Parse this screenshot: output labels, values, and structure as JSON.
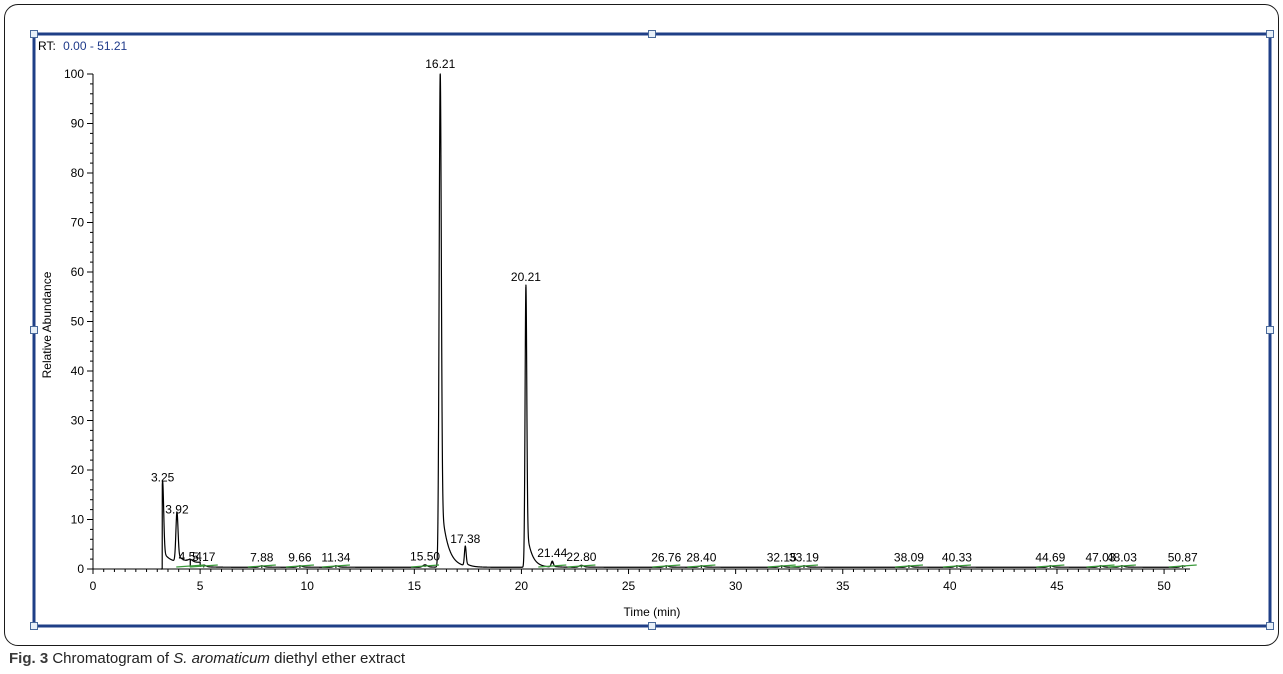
{
  "rt_range": {
    "label": "RT:",
    "value": "0.00 - 51.21"
  },
  "caption": {
    "label": "Fig. 3",
    "text_before": "Chromatogram of ",
    "species": "S. aromaticum",
    "text_after": " diethyl ether extract"
  },
  "colors": {
    "frame": "#1f3f87",
    "trace": "#000000",
    "baseline_marks": "#3a9a3a",
    "rt_value": "#1e3a8a",
    "handle_fill": "#e8f0f8",
    "handle_stroke": "#4a6a9a"
  },
  "chart_data": {
    "type": "line",
    "xlabel": "Time (min)",
    "ylabel": "Relative Abundance",
    "xlim": [
      0,
      51.21
    ],
    "ylim": [
      0,
      100
    ],
    "x_ticks": [
      0,
      5,
      10,
      15,
      20,
      25,
      30,
      35,
      40,
      45,
      50
    ],
    "y_ticks": [
      0,
      10,
      20,
      30,
      40,
      50,
      60,
      70,
      80,
      90,
      100
    ],
    "grid": false,
    "peaks": [
      {
        "rt": 3.25,
        "label": "3.25",
        "height": 16.5,
        "width": 0.05
      },
      {
        "rt": 3.92,
        "label": "3.92",
        "height": 10.0,
        "width": 0.05
      },
      {
        "rt": 4.54,
        "label": "4.54",
        "height": 0.5,
        "width": 0.1
      },
      {
        "rt": 5.17,
        "label": "5.17",
        "height": 0.4,
        "width": 0.1
      },
      {
        "rt": 7.88,
        "label": "7.88",
        "height": 0.3,
        "width": 0.1
      },
      {
        "rt": 9.66,
        "label": "9.66",
        "height": 0.3,
        "width": 0.1
      },
      {
        "rt": 11.34,
        "label": "11.34",
        "height": 0.3,
        "width": 0.1
      },
      {
        "rt": 15.5,
        "label": "15.50",
        "height": 0.5,
        "width": 0.1
      },
      {
        "rt": 16.21,
        "label": "16.21",
        "height": 100.0,
        "width": 0.05
      },
      {
        "rt": 17.38,
        "label": "17.38",
        "height": 4.0,
        "width": 0.04
      },
      {
        "rt": 20.21,
        "label": "20.21",
        "height": 57.0,
        "width": 0.04
      },
      {
        "rt": 21.44,
        "label": "21.44",
        "height": 1.2,
        "width": 0.05
      },
      {
        "rt": 22.8,
        "label": "22.80",
        "height": 0.4,
        "width": 0.1
      },
      {
        "rt": 26.76,
        "label": "26.76",
        "height": 0.3,
        "width": 0.1
      },
      {
        "rt": 28.4,
        "label": "28.40",
        "height": 0.3,
        "width": 0.1
      },
      {
        "rt": 32.15,
        "label": "32.15",
        "height": 0.3,
        "width": 0.1
      },
      {
        "rt": 33.19,
        "label": "33.19",
        "height": 0.3,
        "width": 0.1
      },
      {
        "rt": 38.09,
        "label": "38.09",
        "height": 0.3,
        "width": 0.1
      },
      {
        "rt": 40.33,
        "label": "40.33",
        "height": 0.3,
        "width": 0.1
      },
      {
        "rt": 44.69,
        "label": "44.69",
        "height": 0.3,
        "width": 0.1
      },
      {
        "rt": 47.03,
        "label": "47.03",
        "height": 0.3,
        "width": 0.1
      },
      {
        "rt": 48.03,
        "label": "48.03",
        "height": 0.3,
        "width": 0.1
      },
      {
        "rt": 50.87,
        "label": "50.87",
        "height": 0.3,
        "width": 0.1
      }
    ]
  }
}
